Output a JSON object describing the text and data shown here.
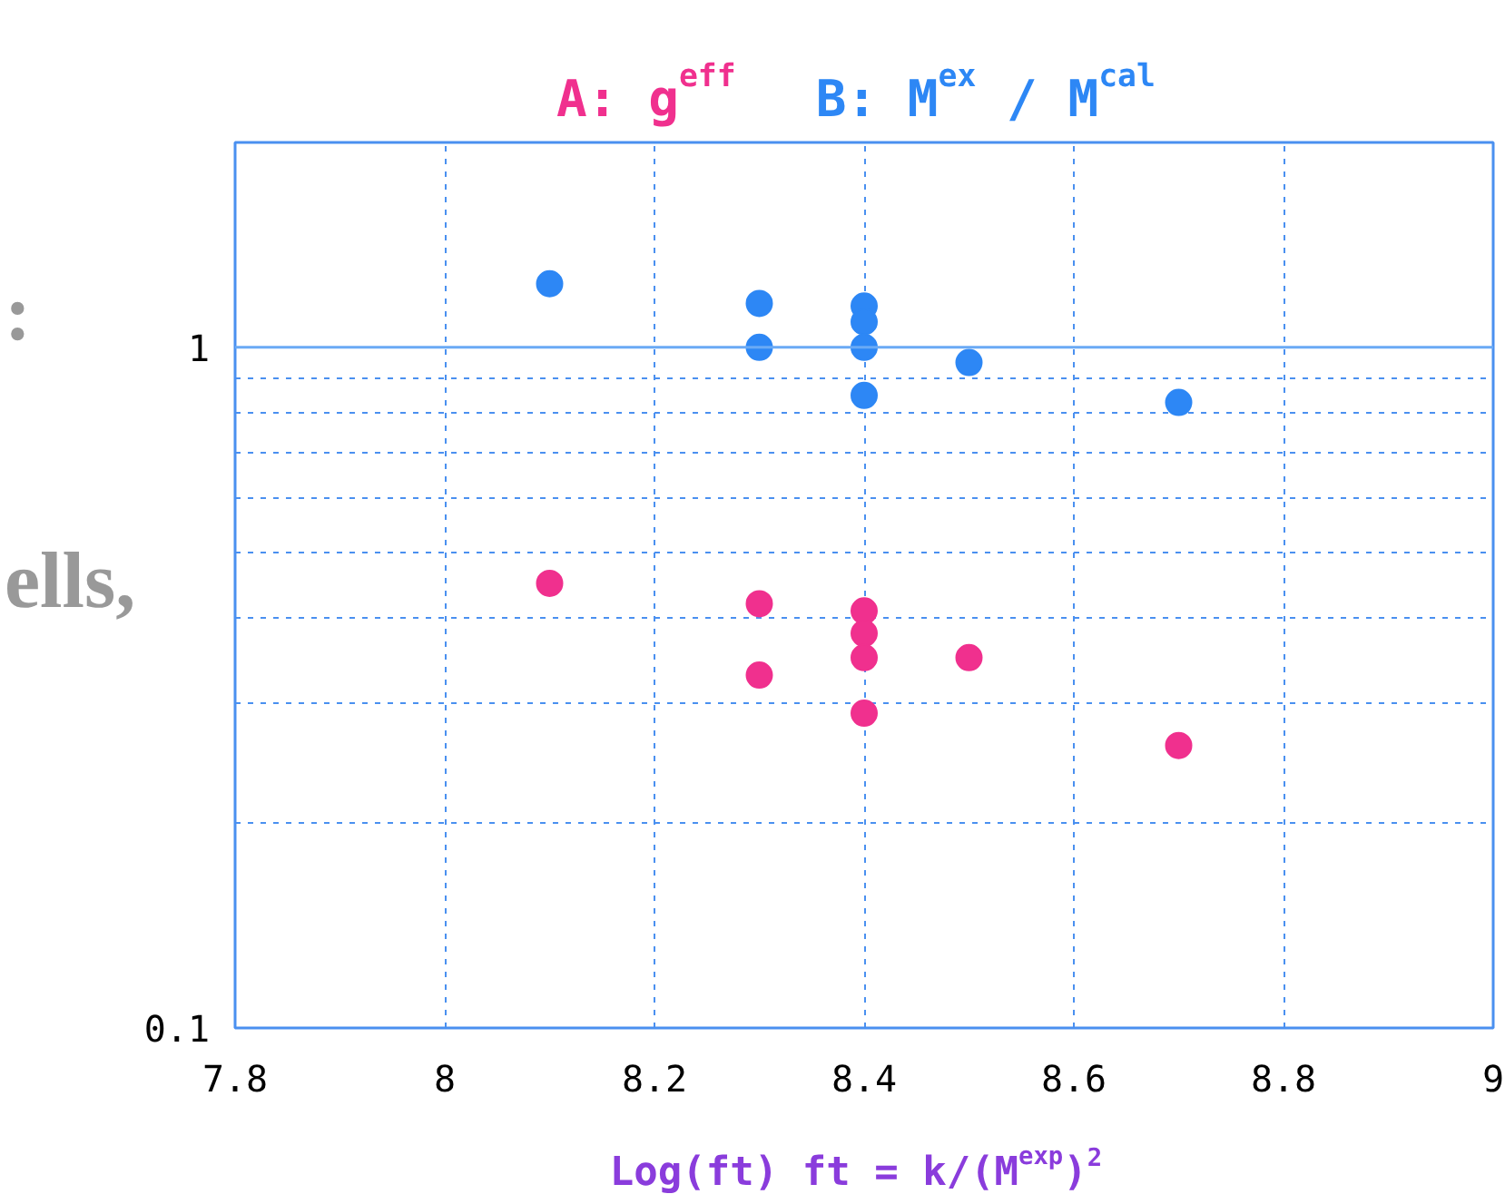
{
  "chart_data": {
    "type": "scatter",
    "xlabel": "Log(ft) ft = k/(M$^{exp}$)$^{2}$",
    "xlim": [
      7.8,
      9
    ],
    "xticks": [
      7.8,
      8,
      8.2,
      8.4,
      8.6,
      8.8,
      9
    ],
    "ylim": [
      0.1,
      2
    ],
    "yticks": [
      0.1,
      {
        "value": 0.2,
        "label": null
      },
      {
        "value": 0.3,
        "label": null
      },
      {
        "value": 0.4,
        "label": null
      },
      {
        "value": 0.5,
        "label": null
      },
      {
        "value": 0.6,
        "label": null
      },
      {
        "value": 0.7,
        "label": null
      },
      {
        "value": 0.8,
        "label": null
      },
      {
        "value": 0.9,
        "label": null
      },
      1
    ],
    "log": "y",
    "grid": true,
    "marker": "circle",
    "ref_lines": [
      {
        "axis": "y",
        "value": 1,
        "color": "#6aaaf5",
        "line_style": "solid"
      }
    ],
    "annotations": [
      ":",
      "ells,"
    ],
    "series": [
      {
        "name": "A: g$^{eff}$",
        "color": "#f0308e",
        "x": [
          8.1,
          8.3,
          8.3,
          8.4,
          8.4,
          8.4,
          8.4,
          8.5,
          8.7
        ],
        "values": [
          0.45,
          0.42,
          0.33,
          0.41,
          0.38,
          0.35,
          0.29,
          0.35,
          0.26
        ]
      },
      {
        "name": "B: M$^{ex}$ / M$^{cal}$",
        "color": "#2d87f5",
        "x": [
          8.1,
          8.3,
          8.3,
          8.4,
          8.4,
          8.4,
          8.4,
          8.5,
          8.7
        ],
        "values": [
          1.24,
          1.16,
          1.0,
          1.15,
          1.09,
          1.0,
          0.85,
          0.95,
          0.83
        ]
      }
    ]
  }
}
